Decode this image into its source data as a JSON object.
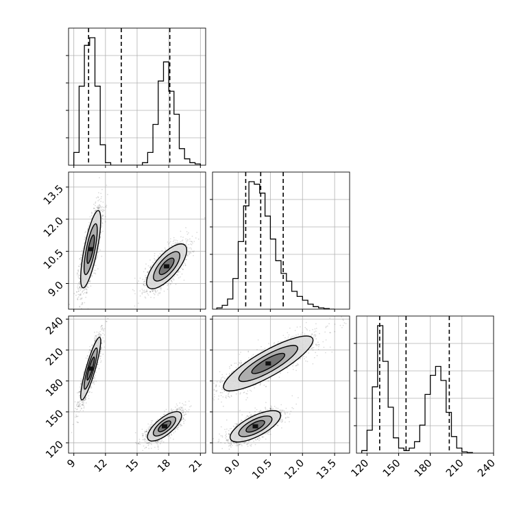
{
  "chart_data": [
    {
      "panel": "hist-x",
      "type": "histogram",
      "x_range": [
        8.5,
        21.5
      ],
      "xticks": [
        9,
        12,
        15,
        18,
        21
      ],
      "quantiles": [
        10.4,
        13.5,
        18.1
      ],
      "bins": [
        [
          9.0,
          0.1
        ],
        [
          9.5,
          0.62
        ],
        [
          10.0,
          0.94
        ],
        [
          10.5,
          1.0
        ],
        [
          11.0,
          0.62
        ],
        [
          11.5,
          0.16
        ],
        [
          12.0,
          0.02
        ],
        [
          12.5,
          0.0
        ],
        [
          13.0,
          0.0
        ],
        [
          13.5,
          0.0
        ],
        [
          14.0,
          0.0
        ],
        [
          14.5,
          0.0
        ],
        [
          15.0,
          0.0
        ],
        [
          15.5,
          0.02
        ],
        [
          16.0,
          0.1
        ],
        [
          16.5,
          0.32
        ],
        [
          17.0,
          0.66
        ],
        [
          17.5,
          0.81
        ],
        [
          18.0,
          0.58
        ],
        [
          18.5,
          0.4
        ],
        [
          19.0,
          0.13
        ],
        [
          19.5,
          0.05
        ],
        [
          20.0,
          0.02
        ],
        [
          20.5,
          0.01
        ]
      ],
      "grid": true
    },
    {
      "panel": "hist-y",
      "type": "histogram",
      "x_range": [
        7.8,
        14.2
      ],
      "xticks": [
        9.0,
        10.5,
        12.0,
        13.5
      ],
      "xtick_labels": [
        "9.0",
        "10.5",
        "12.0",
        "13.5"
      ],
      "quantiles": [
        9.35,
        10.05,
        11.1
      ],
      "bins": [
        [
          8.0,
          0.01
        ],
        [
          8.25,
          0.03
        ],
        [
          8.5,
          0.08
        ],
        [
          8.75,
          0.24
        ],
        [
          9.0,
          0.53
        ],
        [
          9.25,
          0.81
        ],
        [
          9.5,
          1.0
        ],
        [
          9.75,
          0.98
        ],
        [
          10.0,
          0.91
        ],
        [
          10.25,
          0.73
        ],
        [
          10.5,
          0.55
        ],
        [
          10.75,
          0.38
        ],
        [
          11.0,
          0.28
        ],
        [
          11.25,
          0.22
        ],
        [
          11.5,
          0.14
        ],
        [
          11.75,
          0.1
        ],
        [
          12.0,
          0.07
        ],
        [
          12.25,
          0.04
        ],
        [
          12.5,
          0.02
        ],
        [
          12.75,
          0.01
        ],
        [
          13.0,
          0.005
        ],
        [
          13.25,
          0.0
        ]
      ],
      "grid": true
    },
    {
      "panel": "hist-z",
      "type": "histogram",
      "x_range": [
        110,
        240
      ],
      "xticks": [
        120,
        150,
        180,
        210,
        240
      ],
      "quantiles": [
        132,
        157,
        198
      ],
      "bins": [
        [
          115,
          0.02
        ],
        [
          120,
          0.18
        ],
        [
          125,
          0.52
        ],
        [
          130,
          1.0
        ],
        [
          135,
          0.72
        ],
        [
          140,
          0.36
        ],
        [
          145,
          0.12
        ],
        [
          150,
          0.04
        ],
        [
          155,
          0.02
        ],
        [
          160,
          0.04
        ],
        [
          165,
          0.09
        ],
        [
          170,
          0.22
        ],
        [
          175,
          0.46
        ],
        [
          180,
          0.61
        ],
        [
          185,
          0.68
        ],
        [
          190,
          0.57
        ],
        [
          195,
          0.32
        ],
        [
          200,
          0.13
        ],
        [
          205,
          0.04
        ],
        [
          210,
          0.01
        ],
        [
          215,
          0.005
        ]
      ],
      "grid": true
    },
    {
      "panel": "xy",
      "type": "scatter",
      "x_range": [
        8.5,
        21.5
      ],
      "y_range": [
        7.8,
        14.2
      ],
      "yticks": [
        9.0,
        10.5,
        12.0,
        13.5
      ],
      "ytick_labels": [
        "9.0",
        "10.5",
        "12.0",
        "13.5"
      ],
      "clusters": [
        {
          "mean": [
            10.6,
            10.6
          ],
          "sd": [
            0.5,
            0.95
          ],
          "rho": 0.75,
          "n": 1700
        },
        {
          "mean": [
            17.8,
            9.8
          ],
          "sd": [
            1.0,
            0.55
          ],
          "rho": 0.72,
          "n": 1400
        }
      ],
      "grid": true
    },
    {
      "panel": "xz",
      "type": "scatter",
      "x_range": [
        8.5,
        21.5
      ],
      "y_range": [
        110,
        243
      ],
      "yticks": [
        120,
        150,
        180,
        210,
        240
      ],
      "clusters": [
        {
          "mean": [
            10.6,
            192
          ],
          "sd": [
            0.5,
            16
          ],
          "rho": 0.88,
          "n": 1500
        },
        {
          "mean": [
            17.6,
            136
          ],
          "sd": [
            0.85,
            7.5
          ],
          "rho": 0.72,
          "n": 1500
        }
      ],
      "grid": true
    },
    {
      "panel": "yz",
      "type": "scatter",
      "x_range": [
        7.8,
        14.2
      ],
      "y_range": [
        110,
        243
      ],
      "clusters": [
        {
          "mean": [
            10.4,
            197
          ],
          "sd": [
            1.1,
            14
          ],
          "rho": 0.85,
          "n": 1700
        },
        {
          "mean": [
            9.8,
            136
          ],
          "sd": [
            0.62,
            8
          ],
          "rho": 0.7,
          "n": 1400
        }
      ],
      "grid": true
    }
  ]
}
